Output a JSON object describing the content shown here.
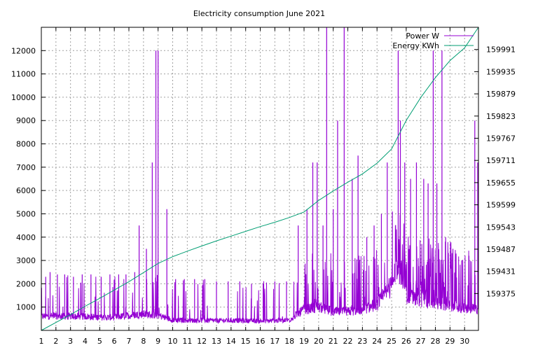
{
  "chart_data": {
    "type": "line",
    "title": "Electricity consumption June 2021",
    "grid": true,
    "legend_position": "top-right",
    "x": {
      "ticks": [
        "1",
        "2",
        "3",
        "4",
        "5",
        "6",
        "7",
        "8",
        "9",
        "10",
        "11",
        "12",
        "13",
        "14",
        "15",
        "16",
        "17",
        "18",
        "19",
        "20",
        "21",
        "22",
        "23",
        "24",
        "25",
        "26",
        "27",
        "28",
        "29",
        "30"
      ],
      "range": [
        1,
        30.95
      ]
    },
    "y_left": {
      "ticks": [
        1000,
        2000,
        3000,
        4000,
        5000,
        6000,
        7000,
        8000,
        9000,
        10000,
        11000,
        12000
      ],
      "range": [
        0,
        13000
      ]
    },
    "y_right": {
      "ticks": [
        159375,
        159431,
        159487,
        159543,
        159599,
        159655,
        159711,
        159767,
        159823,
        159879,
        159935,
        159991
      ],
      "range": [
        159282,
        160047
      ]
    },
    "series": [
      {
        "name": "Power W",
        "axis": "left",
        "color": "#9400d3",
        "style": "impulse-noise",
        "base_profile": [
          [
            1,
            600
          ],
          [
            2,
            620
          ],
          [
            3,
            600
          ],
          [
            4,
            600
          ],
          [
            5,
            560
          ],
          [
            6,
            560
          ],
          [
            7,
            640
          ],
          [
            8,
            700
          ],
          [
            9,
            650
          ],
          [
            10,
            450
          ],
          [
            11,
            430
          ],
          [
            12,
            430
          ],
          [
            13,
            420
          ],
          [
            14,
            430
          ],
          [
            15,
            420
          ],
          [
            16,
            400
          ],
          [
            17,
            420
          ],
          [
            18,
            450
          ],
          [
            19,
            900
          ],
          [
            20,
            1000
          ],
          [
            21,
            800
          ],
          [
            22,
            800
          ],
          [
            23,
            900
          ],
          [
            24,
            1100
          ],
          [
            25,
            1900
          ],
          [
            25.6,
            2600
          ],
          [
            26,
            1500
          ],
          [
            27,
            1300
          ],
          [
            28,
            1200
          ],
          [
            29,
            1050
          ],
          [
            30,
            950
          ],
          [
            30.95,
            900
          ]
        ],
        "spikes": [
          [
            1.3,
            2300
          ],
          [
            1.6,
            2500
          ],
          [
            2.1,
            2400
          ],
          [
            2.6,
            2400
          ],
          [
            3.2,
            2300
          ],
          [
            3.8,
            2400
          ],
          [
            4.4,
            2400
          ],
          [
            5.1,
            2300
          ],
          [
            5.7,
            2400
          ],
          [
            6.3,
            2400
          ],
          [
            6.8,
            2400
          ],
          [
            7.4,
            2500
          ],
          [
            7.7,
            4500
          ],
          [
            8.2,
            3500
          ],
          [
            8.6,
            7200
          ],
          [
            8.85,
            12000
          ],
          [
            9.0,
            12000
          ],
          [
            9.6,
            5200
          ],
          [
            10.2,
            2200
          ],
          [
            10.8,
            2200
          ],
          [
            11.5,
            2200
          ],
          [
            12.2,
            2200
          ],
          [
            13.0,
            2100
          ],
          [
            13.8,
            2100
          ],
          [
            14.6,
            2100
          ],
          [
            15.4,
            2000
          ],
          [
            16.2,
            2000
          ],
          [
            17.0,
            2100
          ],
          [
            17.8,
            2100
          ],
          [
            18.6,
            4500
          ],
          [
            19.2,
            5200
          ],
          [
            19.6,
            7200
          ],
          [
            19.9,
            7200
          ],
          [
            20.3,
            4500
          ],
          [
            20.55,
            13000
          ],
          [
            21.0,
            5200
          ],
          [
            21.3,
            9000
          ],
          [
            21.75,
            13000
          ],
          [
            22.3,
            6500
          ],
          [
            22.7,
            7500
          ],
          [
            23.3,
            4000
          ],
          [
            23.8,
            4500
          ],
          [
            24.3,
            5000
          ],
          [
            24.7,
            7200
          ],
          [
            25.05,
            5100
          ],
          [
            25.45,
            12000
          ],
          [
            25.6,
            9000
          ],
          [
            25.9,
            7200
          ],
          [
            26.3,
            6500
          ],
          [
            26.7,
            7200
          ],
          [
            27.2,
            6500
          ],
          [
            27.5,
            6300
          ],
          [
            27.85,
            12000
          ],
          [
            28.1,
            6300
          ],
          [
            28.45,
            12000
          ],
          [
            28.7,
            4000
          ],
          [
            29.2,
            3500
          ],
          [
            29.8,
            3000
          ],
          [
            30.3,
            3200
          ],
          [
            30.7,
            9000
          ],
          [
            30.9,
            7200
          ]
        ]
      },
      {
        "name": "Energy KWh",
        "axis": "right",
        "color": "#009e73",
        "style": "line",
        "points": [
          [
            1,
            159282
          ],
          [
            2,
            159302
          ],
          [
            3,
            159322
          ],
          [
            4,
            159343
          ],
          [
            5,
            159363
          ],
          [
            6,
            159384
          ],
          [
            7,
            159405
          ],
          [
            8,
            159428
          ],
          [
            9,
            159451
          ],
          [
            10,
            159468
          ],
          [
            11,
            159482
          ],
          [
            12,
            159495
          ],
          [
            13,
            159508
          ],
          [
            14,
            159520
          ],
          [
            15,
            159532
          ],
          [
            16,
            159544
          ],
          [
            17,
            159555
          ],
          [
            18,
            159567
          ],
          [
            19,
            159581
          ],
          [
            20,
            159610
          ],
          [
            21,
            159634
          ],
          [
            22,
            159656
          ],
          [
            23,
            159677
          ],
          [
            24,
            159704
          ],
          [
            25,
            159740
          ],
          [
            26,
            159812
          ],
          [
            27,
            159870
          ],
          [
            28,
            159920
          ],
          [
            29,
            159963
          ],
          [
            30,
            159995
          ],
          [
            30.95,
            160047
          ]
        ]
      }
    ]
  }
}
